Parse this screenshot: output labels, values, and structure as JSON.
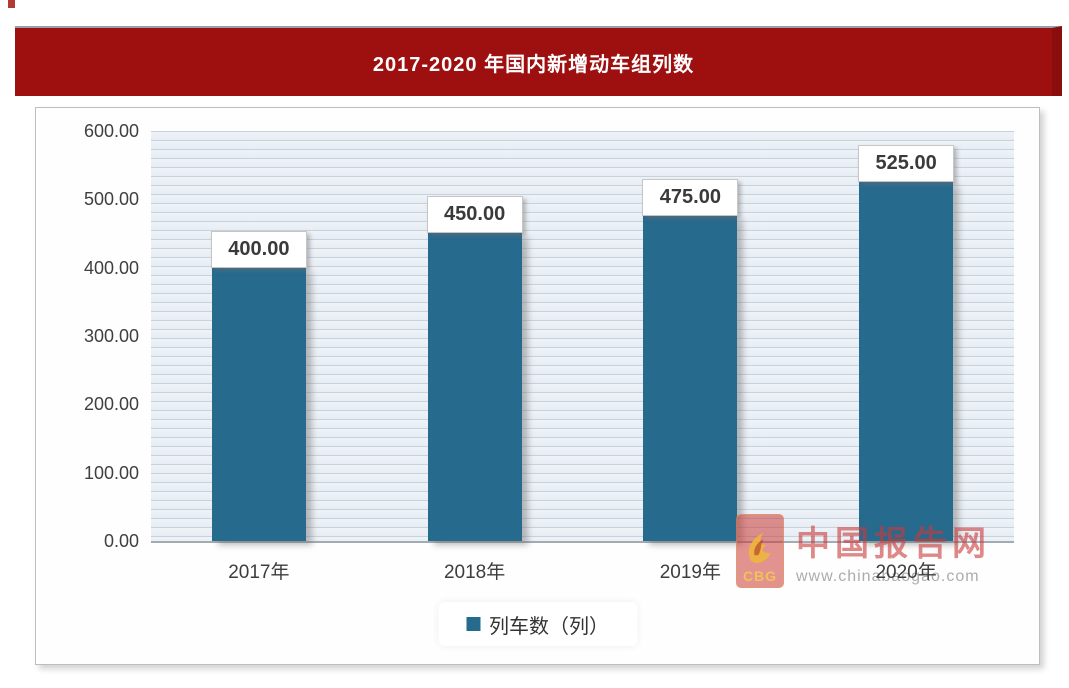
{
  "banner": {
    "title": "2017-2020 年国内新增动车组列数",
    "background_color": "#9e1010",
    "text_color": "#ffffff"
  },
  "chart_data": {
    "type": "bar",
    "title": "2017-2020 年国内新增动车组列数",
    "categories": [
      "2017年",
      "2018年",
      "2019年",
      "2020年"
    ],
    "values": [
      400,
      450,
      475,
      525
    ],
    "value_labels": [
      "400.00",
      "450.00",
      "475.00",
      "525.00"
    ],
    "xlabel": "",
    "ylabel": "",
    "ylim": [
      0,
      600
    ],
    "ytick_step": 100,
    "ytick_labels": [
      "600.00",
      "500.00",
      "400.00",
      "300.00",
      "200.00",
      "100.00",
      "0.00"
    ],
    "legend": [
      "列车数（列）"
    ],
    "legend_position": "bottom",
    "grid": "horizontal-stripes",
    "bar_color": "#266a8e"
  },
  "watermark": {
    "logo_text": "CBG",
    "site_name": "中国报告网",
    "site_url": "www.chinabaogao.com"
  }
}
